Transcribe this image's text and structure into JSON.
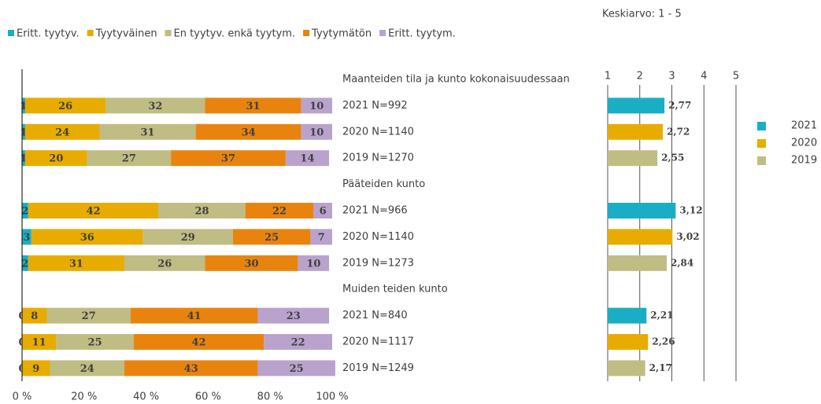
{
  "chart_data": [
    {
      "type": "stacked_bar",
      "categories": [
        "Maanteiden tila ja kunto kokonaisuudessaan",
        "2021 N=992",
        "2020 N=1140",
        "2019 N=1270",
        "Pääteiden kunto",
        "2021 N=966",
        "2020 N=1140",
        "2019 N=1273",
        "Muiden teiden kunto",
        "2021 N=840",
        "2020 N=1117",
        "2019 N=1249"
      ],
      "series": [
        {
          "name": "Eritt. tyytyv.",
          "color": "#1aaec4",
          "values": [
            null,
            1,
            1,
            1,
            null,
            2,
            3,
            2,
            null,
            0,
            0,
            0
          ]
        },
        {
          "name": "Tyytyväinen",
          "color": "#e8ac00",
          "values": [
            null,
            26,
            24,
            20,
            null,
            42,
            36,
            31,
            null,
            8,
            11,
            9
          ]
        },
        {
          "name": "En tyytyv. enkä tyytym.",
          "color": "#bfbd84",
          "values": [
            null,
            32,
            31,
            27,
            null,
            28,
            29,
            26,
            null,
            27,
            25,
            24
          ]
        },
        {
          "name": "Tyytymätön",
          "color": "#e8840e",
          "values": [
            null,
            31,
            34,
            37,
            null,
            22,
            25,
            30,
            null,
            41,
            42,
            43
          ]
        },
        {
          "name": "Eritt. tyytym.",
          "color": "#b9a3cd",
          "values": [
            null,
            10,
            10,
            14,
            null,
            6,
            7,
            10,
            null,
            23,
            22,
            25
          ]
        }
      ],
      "xlim": [
        0,
        100
      ],
      "xticks": [
        {
          "value": 0,
          "label": "0 %"
        },
        {
          "value": 20,
          "label": "20 %"
        },
        {
          "value": 40,
          "label": "40 %"
        },
        {
          "value": 60,
          "label": "60 %"
        },
        {
          "value": 80,
          "label": "80 %"
        },
        {
          "value": 100,
          "label": "100 %"
        }
      ],
      "legend": "top"
    },
    {
      "type": "bar",
      "title": "Keskiarvo: 1 - 5",
      "series": [
        {
          "name": "2021",
          "color": "#1aaec4",
          "values": [
            2.77,
            3.12,
            2.21
          ],
          "value_labels": [
            "2,77",
            "3,12",
            "2,21"
          ]
        },
        {
          "name": "2020",
          "color": "#e8ac00",
          "values": [
            2.72,
            3.02,
            2.26
          ],
          "value_labels": [
            "2,72",
            "3,02",
            "2,26"
          ]
        },
        {
          "name": "2019",
          "color": "#bfbd84",
          "values": [
            2.55,
            2.84,
            2.17
          ],
          "value_labels": [
            "2,55",
            "2,84",
            "2,17"
          ]
        }
      ],
      "xlim": [
        1,
        5
      ],
      "xticks": [
        1,
        2,
        3,
        4,
        5
      ],
      "grid": true,
      "legend": "right"
    }
  ]
}
